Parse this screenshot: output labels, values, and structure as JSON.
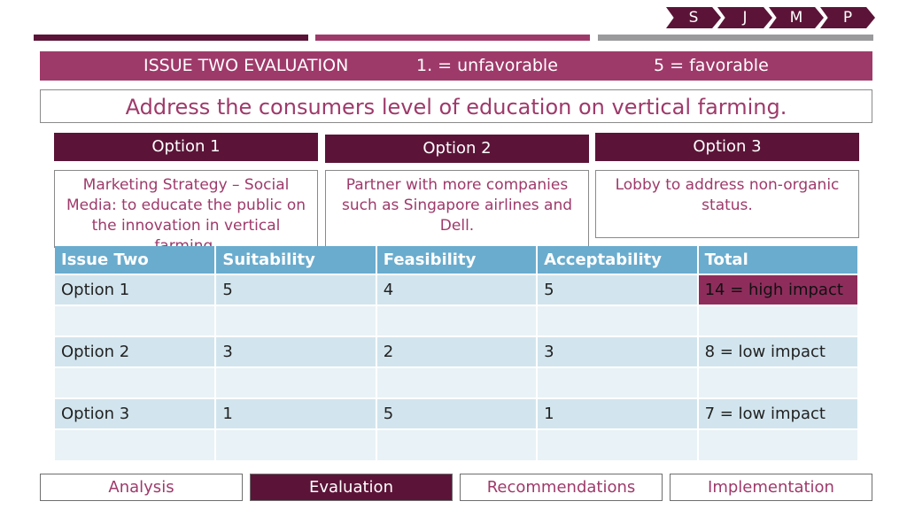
{
  "chevrons": [
    "S",
    "J",
    "M",
    "P"
  ],
  "header": {
    "title": "ISSUE TWO EVALUATION",
    "scale_low": "1. = unfavorable",
    "scale_high": "5 = favorable"
  },
  "issue_statement": "Address the consumers level of education on vertical farming.",
  "options": [
    {
      "label": "Option 1",
      "description": "Marketing Strategy – Social Media: to educate the public on the innovation in vertical farming."
    },
    {
      "label": "Option 2",
      "description": "Partner with more companies such as Singapore airlines and Dell."
    },
    {
      "label": "Option 3",
      "description": "Lobby to address non-organic status."
    }
  ],
  "table": {
    "headers": [
      "Issue Two",
      "Suitability",
      "Feasibility",
      "Acceptability",
      "Total"
    ],
    "rows": [
      [
        "Option 1",
        "5",
        "4",
        "5",
        "14 = high impact"
      ],
      [
        "",
        "",
        "",
        "",
        ""
      ],
      [
        "Option 2",
        "3",
        "2",
        "3",
        "8 = low impact"
      ],
      [
        "",
        "",
        "",
        "",
        ""
      ],
      [
        "Option 3",
        "1",
        "5",
        "1",
        "7 = low impact"
      ],
      [
        "",
        "",
        "",
        "",
        ""
      ]
    ]
  },
  "nav": [
    "Analysis",
    "Evaluation",
    "Recommendations",
    "Implementation"
  ],
  "colors": {
    "plum": "#5b1437",
    "magenta": "#9e3a6a",
    "gray": "#9a9a9d",
    "table_header": "#6aacce",
    "highlight": "#8e2d5c"
  }
}
